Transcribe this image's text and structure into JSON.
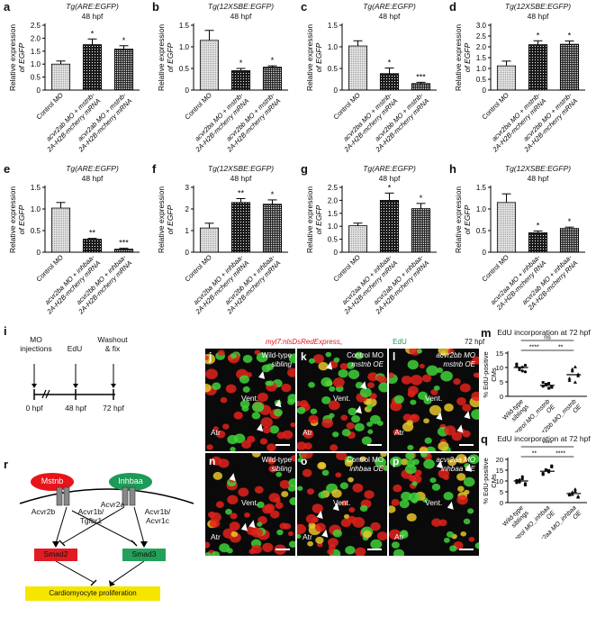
{
  "ylabel_egfp": [
    "Relative expression",
    "of EGFP"
  ],
  "ylabel_edu": [
    "% EdU-positive",
    "CMs"
  ],
  "bar_panels": [
    {
      "id": "a",
      "title": "Tg(ARE:EGFP)",
      "subtitle": "48 hpf",
      "ylim": [
        0,
        2.5
      ],
      "ticks": [
        "0",
        "0.5",
        "1.0",
        "1.5",
        "2.0",
        "2.5"
      ],
      "categories": [
        [
          "Control MO"
        ],
        [
          "acvr2ab MO + mstnb-",
          "2A-H2B-mcherry mRNA"
        ],
        [
          "acvr2ab MO + mstnb-",
          "2A-H2B-mcherry mRNA"
        ]
      ],
      "values": [
        1.0,
        1.75,
        1.58
      ],
      "errors": [
        0.12,
        0.22,
        0.13
      ],
      "sig": [
        "",
        "*",
        "*"
      ]
    },
    {
      "id": "b",
      "title": "Tg(12XSBE:EGFP)",
      "subtitle": "48 hpf",
      "ylim": [
        0,
        1.5
      ],
      "ticks": [
        "0",
        "0.5",
        "1.0",
        "1.5"
      ],
      "categories": [
        [
          "Control MO"
        ],
        [
          "acvr2ba MO + mstnb-",
          "2A-H2B-mcherry mRNA"
        ],
        [
          "acvr2bb MO + mstnb-",
          "2A-H2B-mcherry mRNA"
        ]
      ],
      "values": [
        1.15,
        0.45,
        0.53
      ],
      "errors": [
        0.23,
        0.05,
        0.03
      ],
      "sig": [
        "",
        "*",
        "*"
      ]
    },
    {
      "id": "c",
      "title": "Tg(ARE:EGFP)",
      "subtitle": "48 hpf",
      "ylim": [
        0,
        1.5
      ],
      "ticks": [
        "0",
        "0.5",
        "1.0",
        "1.5"
      ],
      "categories": [
        [
          "Control MO"
        ],
        [
          "acvr2ba MO + mstnb-",
          "2A-H2B-mcherry mRNA"
        ],
        [
          "acvr2bb MO + mstnb-",
          "2A-H2B-mcherry mRNA"
        ]
      ],
      "values": [
        1.02,
        0.38,
        0.15
      ],
      "errors": [
        0.12,
        0.13,
        0.03
      ],
      "sig": [
        "",
        "*",
        "***"
      ]
    },
    {
      "id": "d",
      "title": "Tg(12XSBE:EGFP)",
      "subtitle": "48 hpf",
      "ylim": [
        0,
        3.0
      ],
      "ticks": [
        "0",
        "0.5",
        "1.0",
        "1.5",
        "2.0",
        "2.5",
        "3.0"
      ],
      "categories": [
        [
          "Control MO"
        ],
        [
          "acvr2ba MO + mstnb-",
          "2A-H2B-mcherry mRNA"
        ],
        [
          "acvr2bb MO + mstnb-",
          "2A-H2B-mcherry mRNA"
        ]
      ],
      "values": [
        1.12,
        2.1,
        2.12
      ],
      "errors": [
        0.22,
        0.18,
        0.15
      ],
      "sig": [
        "",
        "*",
        "*"
      ]
    },
    {
      "id": "e",
      "title": "Tg(ARE:EGFP)",
      "subtitle": "48 hpf",
      "ylim": [
        0,
        1.5
      ],
      "ticks": [
        "0",
        "0.5",
        "1.0",
        "1.5"
      ],
      "categories": [
        [
          "Control MO"
        ],
        [
          "acvr2ba MO + inhbaa-",
          "2A-H2B-mcherry mRNA"
        ],
        [
          "acvr2bb MO + inhbaa-",
          "2A-H2B-mcherry mRNA"
        ]
      ],
      "values": [
        1.02,
        0.3,
        0.07
      ],
      "errors": [
        0.13,
        0.02,
        0.02
      ],
      "sig": [
        "",
        "**",
        "***"
      ]
    },
    {
      "id": "f",
      "title": "Tg(12XSBE:EGFP)",
      "subtitle": "48 hpf",
      "ylim": [
        0,
        3
      ],
      "ticks": [
        "0",
        "1",
        "2",
        "3"
      ],
      "categories": [
        [
          "Control MO"
        ],
        [
          "acvr2ba MO + inhbaa-",
          "2A-H2B-mcherry mRNA"
        ],
        [
          "acvr2bb MO + inhbaa-",
          "2A-H2B-mcherry mRNA"
        ]
      ],
      "values": [
        1.12,
        2.3,
        2.22
      ],
      "errors": [
        0.22,
        0.18,
        0.2
      ],
      "sig": [
        "",
        "**",
        "*"
      ]
    },
    {
      "id": "g",
      "title": "Tg(ARE:EGFP)",
      "subtitle": "48 hpf",
      "ylim": [
        0,
        2.5
      ],
      "ticks": [
        "0",
        "0.5",
        "1.0",
        "1.5",
        "2.0",
        "2.5"
      ],
      "categories": [
        [
          "Control MO"
        ],
        [
          "acvr2aa MO + inhbaa-",
          "2A-H2B-mcherry mRNA"
        ],
        [
          "acvr2ab MO + inhbaa-",
          "2A-H2B-mcherry mRNA"
        ]
      ],
      "values": [
        1.02,
        2.0,
        1.68
      ],
      "errors": [
        0.1,
        0.28,
        0.2
      ],
      "sig": [
        "",
        "*",
        "*"
      ]
    },
    {
      "id": "h",
      "title": "Tg(12XSBE:EGFP)",
      "subtitle": "48 hpf",
      "ylim": [
        0,
        1.5
      ],
      "ticks": [
        "0",
        "0.5",
        "1.0",
        "1.5"
      ],
      "categories": [
        [
          "Control MO"
        ],
        [
          "acvr2aa MO + inhbaa-",
          "2A-H2B-mcherry RNA"
        ],
        [
          "acvr2ab MO + inhbaa-",
          "2A-H2B-mcherry RNA"
        ]
      ],
      "values": [
        1.15,
        0.45,
        0.55
      ],
      "errors": [
        0.2,
        0.04,
        0.03
      ],
      "sig": [
        "",
        "*",
        "*"
      ]
    }
  ],
  "timeline": {
    "label": "i",
    "events": [
      "MO",
      "injections",
      "EdU",
      "Washout",
      "& fix"
    ],
    "times": [
      "0 hpf",
      "48 hpf",
      "72 hpf"
    ]
  },
  "micro_header": {
    "red": "myl7:nlsDsRedExpress",
    "sep": ",",
    "green": "EdU",
    "time": "72 hpf"
  },
  "micro_panels": [
    {
      "id": "j",
      "text": [
        "Wild-type",
        "sibling"
      ],
      "labels": [
        "Vent.",
        "Atr"
      ]
    },
    {
      "id": "k",
      "text": [
        "Control MO",
        "mstnb OE"
      ],
      "labels": [
        "Vent.",
        "Atr"
      ]
    },
    {
      "id": "l",
      "text": [
        "acvr2bb MO",
        "mstnb OE"
      ],
      "labels": [
        "Vent.",
        "Atr"
      ]
    },
    {
      "id": "n",
      "text": [
        "Wild-type",
        "sibling"
      ],
      "labels": [
        "Vent.",
        "Atr"
      ]
    },
    {
      "id": "o",
      "text": [
        "Control MO",
        "inhbaa OE"
      ],
      "labels": [
        "Vent.",
        "Atr"
      ]
    },
    {
      "id": "p",
      "text": [
        "acvr2aa MO",
        "inhbaa OE"
      ],
      "labels": [
        "Vent.",
        "Atr"
      ]
    }
  ],
  "scatter_panels": [
    {
      "id": "m",
      "title": "EdU incorporation at 72 hpf",
      "ylim": [
        0,
        15
      ],
      "ticks": [
        "0",
        "5",
        "10",
        "15"
      ],
      "categories": [
        [
          "Wild-type",
          "siblings"
        ],
        [
          "Control MO_mstnb",
          "OE"
        ],
        [
          "acvr2bb MO_mstnb",
          "OE"
        ]
      ],
      "means": [
        10.0,
        3.8,
        7.5
      ],
      "points": [
        [
          10.5,
          9.2,
          8.8,
          10.8,
          11.2,
          9.8,
          10.1,
          8.5
        ],
        [
          3.5,
          4.2,
          2.8,
          3.1,
          4.8,
          3.9,
          4.5,
          3.3
        ],
        [
          6.2,
          8.8,
          10.2,
          7.1,
          5.5,
          9.4,
          4.9,
          7.6
        ]
      ],
      "sig": [
        {
          "pair": [
            0,
            1
          ],
          "text": "****",
          "level": 0
        },
        {
          "pair": [
            1,
            2
          ],
          "text": "**",
          "level": 0
        },
        {
          "pair": [
            0,
            2
          ],
          "text": "ns",
          "level": 1
        }
      ]
    },
    {
      "id": "q",
      "title": "EdU incorporation at 72 hpf",
      "ylim": [
        0,
        20
      ],
      "ticks": [
        "0",
        "5",
        "10",
        "15",
        "20"
      ],
      "categories": [
        [
          "Wild-type",
          "siblings"
        ],
        [
          "Control MO_inhbaa",
          "OE"
        ],
        [
          "acvr2aa MO_inhbaa",
          "OE"
        ]
      ],
      "means": [
        10.0,
        14.5,
        4.2
      ],
      "points": [
        [
          9.2,
          10.5,
          11.0,
          8.8,
          10.2,
          9.5,
          12.0,
          8.1
        ],
        [
          13.5,
          15.2,
          14.8,
          16.5,
          13.0,
          15.0,
          14.2,
          17.0
        ],
        [
          3.5,
          4.8,
          5.2,
          2.9,
          4.0,
          3.8,
          6.2,
          2.5
        ]
      ],
      "sig": [
        {
          "pair": [
            0,
            1
          ],
          "text": "**",
          "level": 0
        },
        {
          "pair": [
            1,
            2
          ],
          "text": "****",
          "level": 0
        },
        {
          "pair": [
            0,
            2
          ],
          "text": "****",
          "level": 1
        }
      ]
    }
  ],
  "pathway": {
    "label": "r",
    "ligands": [
      "Mstnb",
      "Inhbaa"
    ],
    "receptors": [
      "Acvr2b",
      "Acvr1b/",
      "Tgfbr1",
      "Acvr2a",
      "Acvr1b/",
      "Acvr1c"
    ],
    "smads": [
      "Smad2",
      "Smad3"
    ],
    "outcome": "Cardiomyocyte proliferation",
    "colors": {
      "mstnb": "#e8141c",
      "inhbaa": "#1c9a57",
      "smad2": "#e21b23",
      "smad3": "#23a05a",
      "outcome": "#f5e600"
    }
  }
}
